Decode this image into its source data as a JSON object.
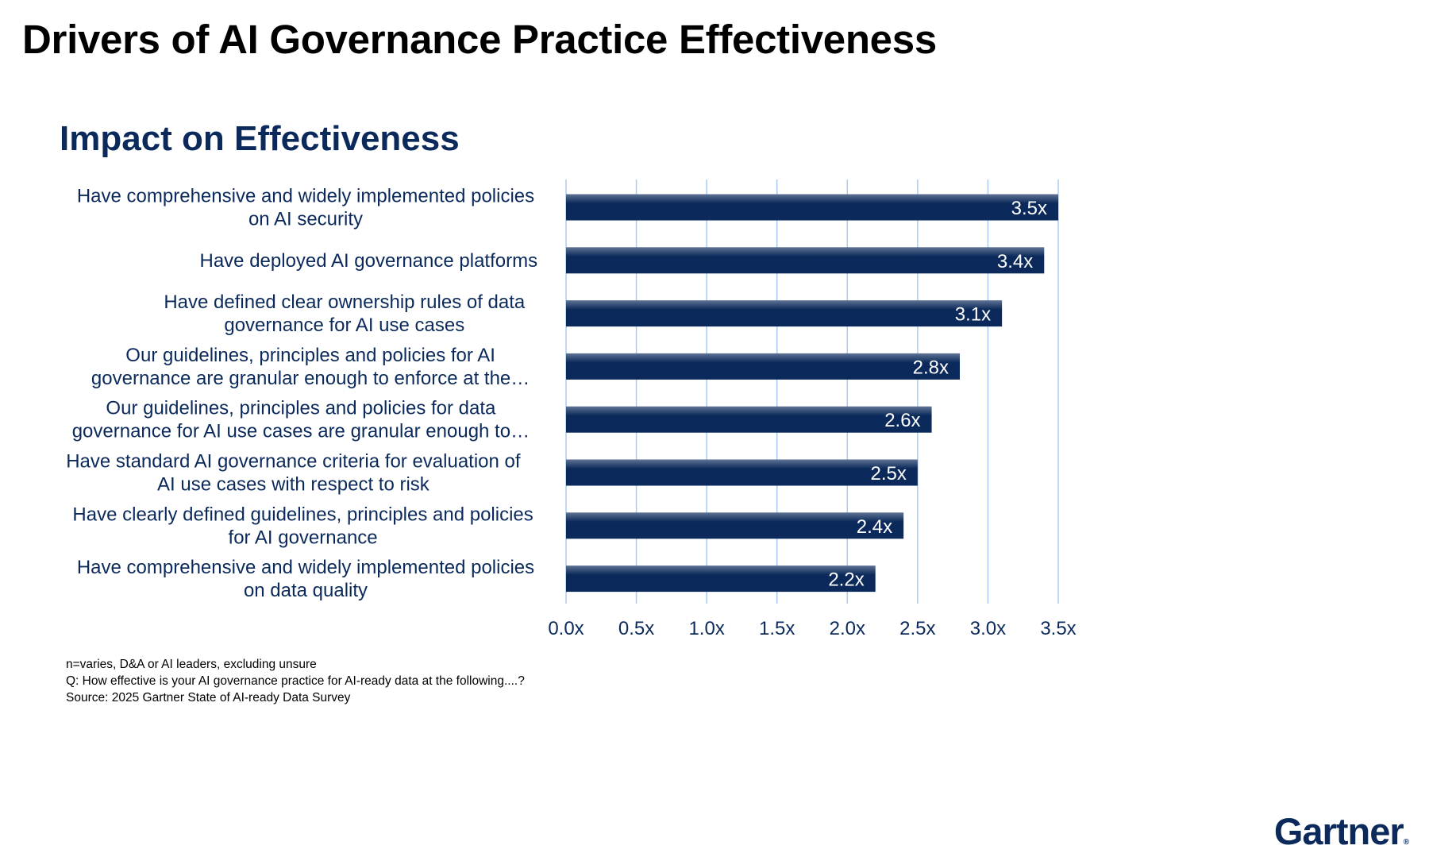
{
  "page": {
    "title": "Drivers of AI Governance Practice Effectiveness",
    "logo_text": "Gartner"
  },
  "colors": {
    "bar": "#0b2a5b",
    "bar_highlight": "#5f7394",
    "gridline": "#a9cdf0",
    "text": "#0b2a5b"
  },
  "chart_data": {
    "type": "bar",
    "orientation": "horizontal",
    "title": "Impact on Effectiveness",
    "categories": [
      [
        "Have comprehensive and widely implemented policies",
        "on AI security"
      ],
      [
        "Have deployed AI governance platforms"
      ],
      [
        "Have defined clear ownership rules of data",
        "governance for AI use cases"
      ],
      [
        "Our guidelines, principles and policies for AI",
        "governance are granular enough to enforce at the…"
      ],
      [
        "Our guidelines, principles and policies for data",
        "governance for AI use cases are granular enough to…"
      ],
      [
        "Have standard AI governance criteria for evaluation of",
        "AI use cases with respect to risk"
      ],
      [
        "Have clearly defined guidelines, principles and policies",
        "for AI governance"
      ],
      [
        "Have comprehensive and widely implemented policies",
        "on data quality"
      ]
    ],
    "values": [
      3.5,
      3.4,
      3.1,
      2.8,
      2.6,
      2.5,
      2.4,
      2.2
    ],
    "data_labels": [
      "3.5x",
      "3.4x",
      "3.1x",
      "2.8x",
      "2.6x",
      "2.5x",
      "2.4x",
      "2.2x"
    ],
    "xticks": [
      0,
      0.5,
      1.0,
      1.5,
      2.0,
      2.5,
      3.0,
      3.5
    ],
    "xtick_labels": [
      "0.0x",
      "0.5x",
      "1.0x",
      "1.5x",
      "2.0x",
      "2.5x",
      "3.0x",
      "3.5x"
    ],
    "xlim": [
      0,
      3.5
    ],
    "grid": true,
    "legend": "none"
  },
  "footnotes": {
    "n": "n=varies, D&A or AI leaders, excluding unsure",
    "question": "Q: How effective is your AI governance practice for AI-ready data at the following....?",
    "source": "Source: 2025 Gartner State of AI-ready Data Survey"
  }
}
